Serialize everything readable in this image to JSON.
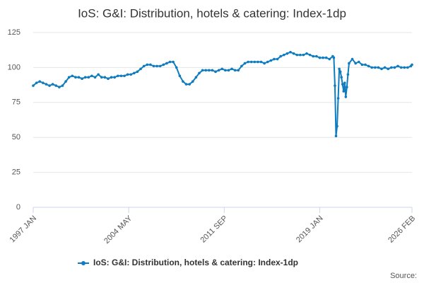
{
  "chart_data": {
    "type": "line",
    "title": "IoS: G&I: Distribution, hotels & catering: Index-1dp",
    "source": "Source:",
    "x": [
      "1997-01",
      "1997-04",
      "1997-07",
      "1997-10",
      "1998-01",
      "1998-04",
      "1998-07",
      "1998-10",
      "1999-01",
      "1999-04",
      "1999-07",
      "1999-10",
      "2000-01",
      "2000-04",
      "2000-07",
      "2000-10",
      "2001-01",
      "2001-04",
      "2001-07",
      "2001-10",
      "2002-01",
      "2002-04",
      "2002-07",
      "2002-10",
      "2003-01",
      "2003-04",
      "2003-07",
      "2003-10",
      "2004-01",
      "2004-04",
      "2004-07",
      "2004-10",
      "2005-01",
      "2005-04",
      "2005-07",
      "2005-10",
      "2006-01",
      "2006-04",
      "2006-07",
      "2006-10",
      "2007-01",
      "2007-04",
      "2007-07",
      "2007-10",
      "2008-01",
      "2008-04",
      "2008-07",
      "2008-10",
      "2009-01",
      "2009-04",
      "2009-07",
      "2009-10",
      "2010-01",
      "2010-04",
      "2010-07",
      "2010-10",
      "2011-01",
      "2011-04",
      "2011-07",
      "2011-10",
      "2012-01",
      "2012-04",
      "2012-07",
      "2012-10",
      "2013-01",
      "2013-04",
      "2013-07",
      "2013-10",
      "2014-01",
      "2014-04",
      "2014-07",
      "2014-10",
      "2015-01",
      "2015-04",
      "2015-07",
      "2015-10",
      "2016-01",
      "2016-04",
      "2016-07",
      "2016-10",
      "2017-01",
      "2017-04",
      "2017-07",
      "2017-10",
      "2018-01",
      "2018-04",
      "2018-07",
      "2018-10",
      "2019-01",
      "2019-04",
      "2019-07",
      "2019-10",
      "2020-01",
      "2020-02",
      "2020-03",
      "2020-04",
      "2020-05",
      "2020-06",
      "2020-07",
      "2020-08",
      "2020-09",
      "2020-10",
      "2020-11",
      "2020-12",
      "2021-01",
      "2021-02",
      "2021-03",
      "2021-04",
      "2021-07",
      "2021-10",
      "2022-01",
      "2022-04",
      "2022-07",
      "2022-10",
      "2023-01",
      "2023-04",
      "2023-07",
      "2023-10",
      "2024-01",
      "2024-04",
      "2024-07",
      "2024-10",
      "2025-01",
      "2025-04",
      "2025-07",
      "2025-10",
      "2026-01",
      "2026-02"
    ],
    "series": [
      {
        "name": "IoS: G&I: Distribution, hotels & catering: Index-1dp",
        "color": "#0e7cbf",
        "values": [
          87,
          89,
          90,
          89,
          88,
          87,
          88,
          87,
          86,
          87,
          90,
          93,
          94,
          93,
          93,
          92,
          93,
          93,
          94,
          93,
          95,
          93,
          93,
          92,
          93,
          93,
          94,
          94,
          94,
          95,
          95,
          96,
          97,
          99,
          101,
          102,
          102,
          101,
          101,
          101,
          102,
          103,
          104,
          104,
          100,
          94,
          90,
          88,
          88,
          90,
          93,
          96,
          98,
          98,
          98,
          98,
          97,
          98,
          99,
          98,
          98,
          99,
          98,
          98,
          101,
          103,
          104,
          104,
          104,
          104,
          104,
          103,
          104,
          105,
          106,
          106,
          108,
          109,
          110,
          111,
          110,
          109,
          109,
          109,
          110,
          109,
          108,
          108,
          107,
          107,
          107,
          106,
          108,
          107,
          87,
          51,
          58,
          78,
          99,
          97,
          93,
          88,
          83,
          89,
          79,
          86,
          95,
          103,
          106,
          103,
          104,
          102,
          102,
          101,
          100,
          100,
          100,
          99,
          100,
          99,
          100,
          100,
          101,
          100,
          100,
          100,
          101,
          102
        ]
      }
    ],
    "xlim": [
      "1997-01",
      "2026-02"
    ],
    "xticks": [
      {
        "value": "1997-01",
        "label": "1997 JAN"
      },
      {
        "value": "2004-05",
        "label": "2004 MAY"
      },
      {
        "value": "2011-09",
        "label": "2011 SEP"
      },
      {
        "value": "2019-01",
        "label": "2019 JAN"
      },
      {
        "value": "2026-02",
        "label": "2026 FEB"
      }
    ],
    "ylim": [
      0,
      125
    ],
    "yticks": [
      0,
      25,
      50,
      75,
      100,
      125
    ],
    "grid": true
  }
}
